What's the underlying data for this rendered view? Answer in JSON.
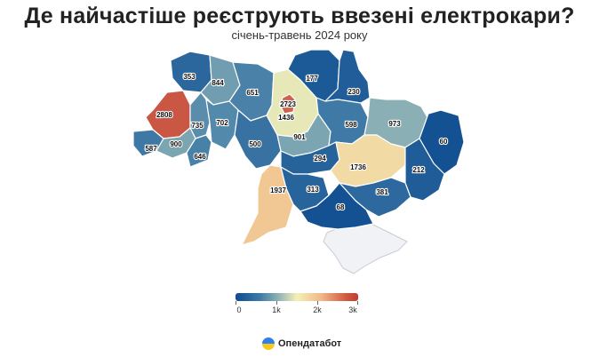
{
  "header": {
    "title": "Де найчастіше реєструють ввезені електрокари?",
    "subtitle": "січень-травень 2024 року"
  },
  "legend": {
    "ticks": [
      "0",
      "1k",
      "2k",
      "3k"
    ],
    "min": 0,
    "max": 3000
  },
  "colors": {
    "scale_low": "#0e4c91",
    "scale_mid": "#f4f0b8",
    "scale_high": "#c03c32",
    "occupied_crimea": "#f1f2f5"
  },
  "brand": {
    "name": "Опендатабот"
  },
  "chart_data": {
    "type": "choropleth",
    "regions": [
      {
        "id": "volyn",
        "value": 353
      },
      {
        "id": "rivne",
        "value": 844
      },
      {
        "id": "zhytomyr",
        "value": 651
      },
      {
        "id": "kyiv-oblast",
        "value": 1436
      },
      {
        "id": "kyiv-city",
        "value": 2723
      },
      {
        "id": "chernihiv",
        "value": 177
      },
      {
        "id": "sumy",
        "value": 230
      },
      {
        "id": "lviv",
        "value": 2808
      },
      {
        "id": "ternopil",
        "value": 735
      },
      {
        "id": "khmelnytskyi",
        "value": 702
      },
      {
        "id": "vinnytsia",
        "value": 500
      },
      {
        "id": "cherkasy",
        "value": 901
      },
      {
        "id": "poltava",
        "value": 598
      },
      {
        "id": "kharkiv",
        "value": 973
      },
      {
        "id": "luhansk",
        "value": 60
      },
      {
        "id": "zakarpattia",
        "value": 587
      },
      {
        "id": "ivano-frankivsk",
        "value": 900
      },
      {
        "id": "chernivtsi",
        "value": 646
      },
      {
        "id": "kirovohrad",
        "value": 294
      },
      {
        "id": "dnipropetrovsk",
        "value": 1736
      },
      {
        "id": "donetsk",
        "value": 212
      },
      {
        "id": "odesa",
        "value": 1937
      },
      {
        "id": "mykolaiv",
        "value": 313
      },
      {
        "id": "zaporizhzhia",
        "value": 381
      },
      {
        "id": "kherson",
        "value": 68
      }
    ]
  }
}
